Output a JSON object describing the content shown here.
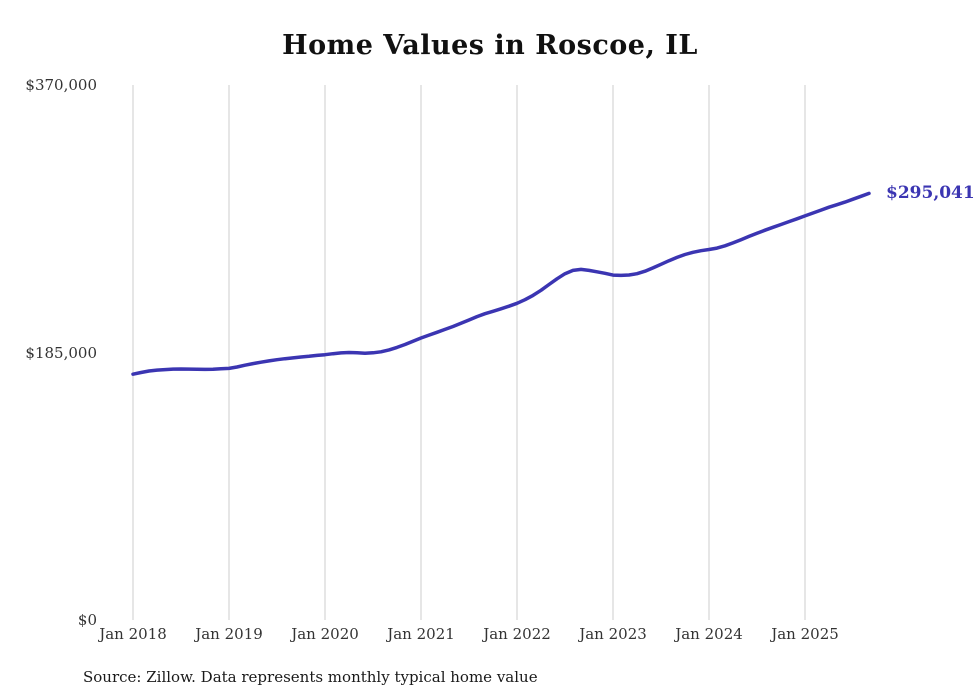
{
  "title": "Home Values in Roscoe, IL",
  "end_label": "$295,041",
  "source_note": "Source: Zillow. Data represents monthly typical home value",
  "colors": {
    "line": "#3b35b2",
    "grid": "#cccccc",
    "axis_text": "#333333",
    "title_text": "#111111"
  },
  "y_axis": {
    "ticks": [
      {
        "label": "$370,000",
        "value": 370000
      },
      {
        "label": "$185,000",
        "value": 185000
      },
      {
        "label": "$0",
        "value": 0
      }
    ]
  },
  "x_axis": {
    "ticks": [
      "Jan 2018",
      "Jan 2019",
      "Jan 2020",
      "Jan 2021",
      "Jan 2022",
      "Jan 2023",
      "Jan 2024",
      "Jan 2025"
    ]
  },
  "chart_data": {
    "type": "line",
    "title": "Home Values in Roscoe, IL",
    "xlabel": "",
    "ylabel": "",
    "ylim": [
      0,
      370000
    ],
    "grid": "vertical-only",
    "legend_position": "none",
    "x_start": "2018-01",
    "x_end": "2025-09",
    "frequency": "monthly",
    "final_value": 295041,
    "series": [
      {
        "name": "Typical home value",
        "values": [
          170000,
          171200,
          172200,
          172800,
          173200,
          173500,
          173600,
          173500,
          173400,
          173300,
          173400,
          173700,
          174000,
          175000,
          176200,
          177300,
          178300,
          179200,
          180000,
          180700,
          181300,
          181900,
          182400,
          183000,
          183500,
          184200,
          184700,
          185000,
          184800,
          184500,
          184800,
          185500,
          186800,
          188500,
          190500,
          192800,
          195000,
          197000,
          199000,
          201000,
          203000,
          205200,
          207500,
          209800,
          211800,
          213500,
          215200,
          217000,
          219000,
          221500,
          224500,
          228000,
          232000,
          236000,
          239500,
          241800,
          242500,
          241800,
          240800,
          239800,
          238500,
          238300,
          238600,
          239500,
          241200,
          243500,
          246000,
          248500,
          250800,
          252800,
          254300,
          255400,
          256200,
          257200,
          258800,
          260800,
          263000,
          265300,
          267500,
          269600,
          271600,
          273500,
          275500,
          277500,
          279500,
          281500,
          283500,
          285500,
          287200,
          289000,
          291000,
          293000,
          295041
        ]
      }
    ]
  }
}
